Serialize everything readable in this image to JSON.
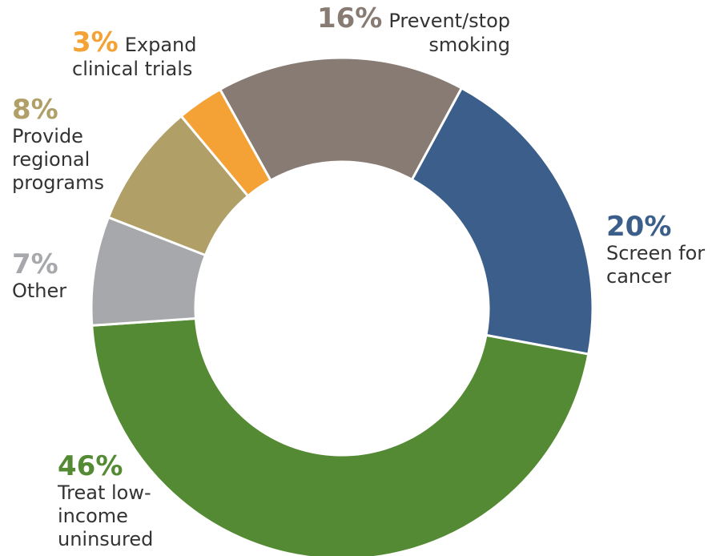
{
  "chart_data": {
    "type": "donut",
    "categories": [
      "Screen for cancer",
      "Treat low-income uninsured",
      "Other",
      "Provide regional programs",
      "Expand clinical trials",
      "Prevent/stop smoking"
    ],
    "values": [
      20,
      46,
      7,
      8,
      3,
      16
    ],
    "value_labels": [
      "20%",
      "46%",
      "7%",
      "8%",
      "3%",
      "16%"
    ],
    "colors": [
      "#3b5f8a",
      "#548a33",
      "#a7a8ab",
      "#b0a068",
      "#f4a235",
      "#877b73"
    ]
  }
}
